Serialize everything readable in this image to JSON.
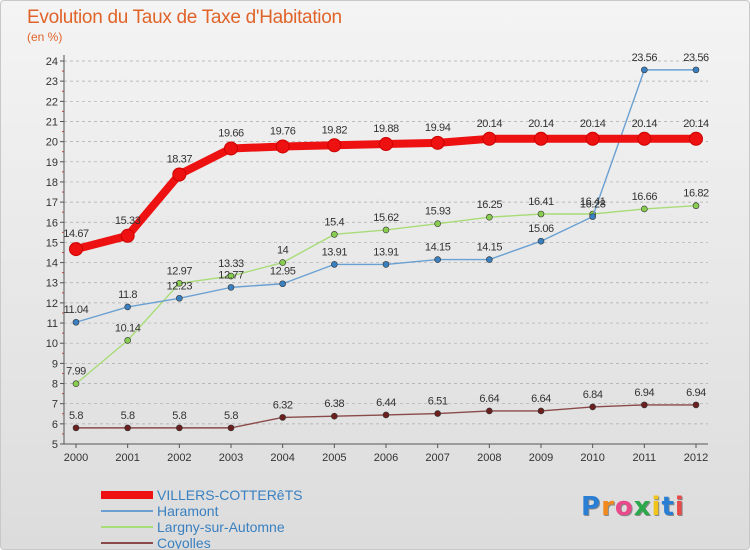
{
  "title": "Evolution du Taux de Taxe d'Habitation",
  "ylabel": "(en %)",
  "logo": "Proxiti",
  "colors": {
    "title": "#e0642a",
    "axis": "#555555",
    "grid": "#aaaaaa"
  },
  "chart_data": {
    "type": "line",
    "title": "Evolution du Taux de Taxe d'Habitation",
    "ylabel": "(en %)",
    "xlabel": "",
    "x": [
      2000,
      2001,
      2002,
      2003,
      2004,
      2005,
      2006,
      2007,
      2008,
      2009,
      2010,
      2011,
      2012
    ],
    "ylim": [
      5,
      24
    ],
    "yticks": [
      5,
      6,
      7,
      8,
      9,
      10,
      11,
      12,
      13,
      14,
      15,
      16,
      17,
      18,
      19,
      20,
      21,
      22,
      23,
      24
    ],
    "grid": "dashed horizontal",
    "legend_position": "bottom-left",
    "series": [
      {
        "name": "VILLERS-COTTERêTS",
        "color": "#ee1111",
        "style": "thick",
        "values": [
          14.67,
          15.33,
          18.37,
          19.66,
          19.76,
          19.82,
          19.88,
          19.94,
          20.14,
          20.14,
          20.14,
          20.14,
          20.14
        ],
        "labels": [
          "14.67",
          "15.33",
          "18.37",
          "19.66",
          "19.76",
          "19.82",
          "19.88",
          "19.94",
          "20.14",
          "20.14",
          "20.14",
          "20.14",
          "20.14"
        ]
      },
      {
        "name": "Haramont",
        "color": "#6aa0d2",
        "marker": "#3a80c0",
        "style": "thin",
        "values": [
          11.04,
          11.8,
          12.23,
          12.77,
          12.95,
          13.91,
          13.91,
          14.15,
          14.15,
          15.06,
          16.28,
          23.56,
          23.56
        ],
        "labels": [
          "11.04",
          "11.8",
          "12.23",
          "12.77",
          "12.95",
          "13.91",
          "13.91",
          "14.15",
          "14.15",
          "15.06",
          "16.28",
          "23.56",
          "23.56"
        ]
      },
      {
        "name": "Largny-sur-Automne",
        "color": "#a8dc78",
        "marker": "#88cc50",
        "style": "thin",
        "values": [
          7.99,
          10.14,
          12.97,
          13.33,
          14,
          15.4,
          15.62,
          15.93,
          16.25,
          16.41,
          16.41,
          16.66,
          16.82
        ],
        "labels": [
          "7.99",
          "10.14",
          "12.97",
          "13.33",
          "14",
          "15.4",
          "15.62",
          "15.93",
          "16.25",
          "16.41",
          "16.41",
          "16.66",
          "16.82"
        ]
      },
      {
        "name": "Coyolles",
        "color": "#8b4a4a",
        "marker": "#6b1f1f",
        "style": "thin",
        "values": [
          5.8,
          5.8,
          5.8,
          5.8,
          6.32,
          6.38,
          6.44,
          6.51,
          6.64,
          6.64,
          6.84,
          6.94,
          6.94
        ],
        "labels": [
          "5.8",
          "5.8",
          "5.8",
          "5.8",
          "6.32",
          "6.38",
          "6.44",
          "6.51",
          "6.64",
          "6.64",
          "6.84",
          "6.94",
          "6.94"
        ]
      }
    ]
  }
}
